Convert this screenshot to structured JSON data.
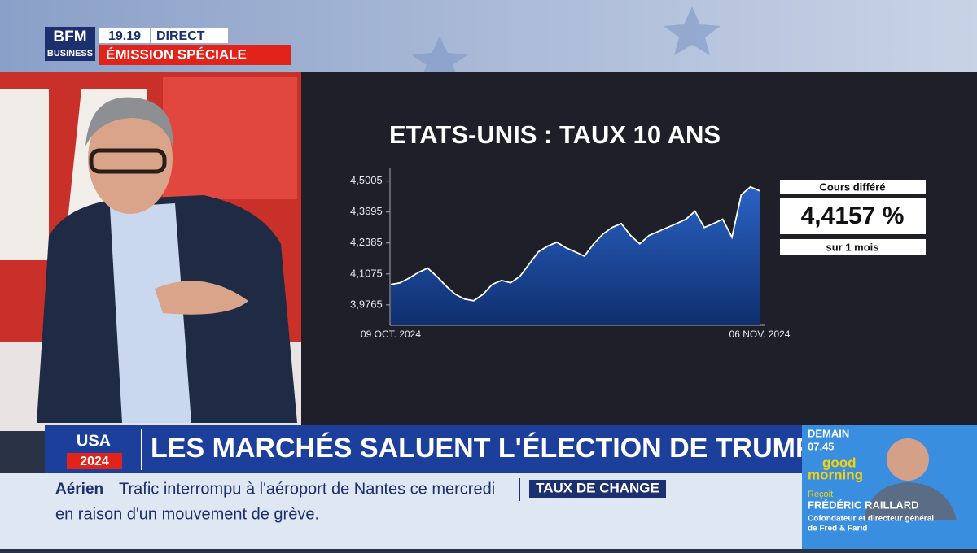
{
  "header": {
    "logo_top": "BFM",
    "logo_bottom": "BUSINESS",
    "time": "19.19",
    "live": "DIRECT",
    "program": "ÉMISSION SPÉCIALE"
  },
  "chart": {
    "type": "line",
    "title": "ETATS-UNIS : TAUX 10 ANS",
    "categories": [
      "09 OCT. 2024",
      null,
      null,
      null,
      null,
      null,
      null,
      null,
      null,
      null,
      null,
      null,
      null,
      null,
      null,
      null,
      null,
      null,
      null,
      null,
      null,
      null,
      null,
      null,
      null,
      null,
      null,
      null,
      null,
      null,
      null,
      null,
      null,
      null,
      null,
      null,
      null,
      null,
      null,
      null,
      "06 NOV. 2024"
    ],
    "values": [
      4.063,
      4.07,
      4.09,
      4.114,
      4.132,
      4.097,
      4.056,
      4.021,
      4.001,
      3.994,
      4.021,
      4.063,
      4.08,
      4.07,
      4.097,
      4.149,
      4.201,
      4.225,
      4.242,
      4.218,
      4.201,
      4.183,
      4.235,
      4.276,
      4.304,
      4.321,
      4.27,
      4.235,
      4.27,
      4.287,
      4.304,
      4.321,
      4.339,
      4.373,
      4.304,
      4.321,
      4.339,
      4.263,
      4.442,
      4.476,
      4.459
    ],
    "color": "#ffffff",
    "fill": "#1d4fa8",
    "ylim": [
      3.89,
      4.52
    ],
    "yticks": [
      {
        "value": 3.9765,
        "label": "3,9765"
      },
      {
        "value": 4.1075,
        "label": "4,1075"
      },
      {
        "value": 4.2385,
        "label": "4,2385"
      },
      {
        "value": 4.3695,
        "label": "4,3695"
      },
      {
        "value": 4.5005,
        "label": "4,5005"
      }
    ]
  },
  "quote": {
    "label": "Cours différé",
    "value": "4,4157 %",
    "period": "sur 1 mois"
  },
  "banner": {
    "usa": "USA",
    "year": "2024",
    "headline": "LES MARCHÉS SALUENT L'ÉLECTION DE TRUMP"
  },
  "ticker": {
    "category": "Aérien",
    "line1": "Trafic interrompu à l'aéroport de Nantes ce mercredi",
    "line2": "en raison d'un mouvement de grève.",
    "next": "TAUX DE CHANGE"
  },
  "promo": {
    "day": "DEMAIN",
    "time": "07.45",
    "show_top": "good",
    "show_bottom": "morning",
    "receives": "Reçoit",
    "guest": "FRÉDÉRIC RAILLARD",
    "role1": "Cofondateur et directeur général",
    "role2": "de Fred & Farid"
  }
}
